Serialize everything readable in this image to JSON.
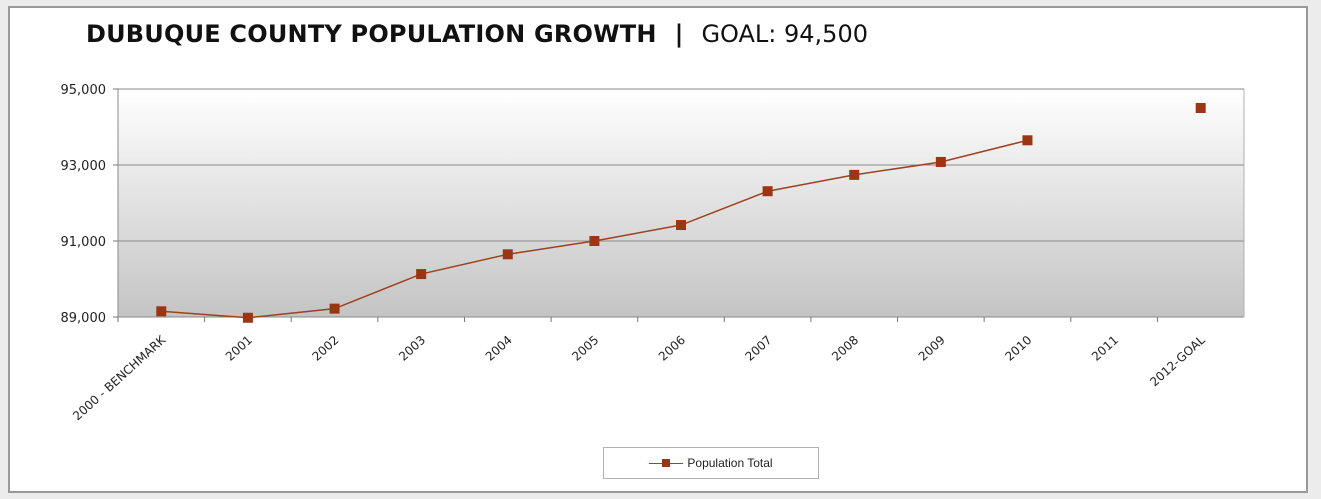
{
  "title": {
    "main": "DUBUQUE COUNTY POPULATION GROWTH",
    "separator": "|",
    "goal": "GOAL: 94,500"
  },
  "legend": {
    "label": "Population Total"
  },
  "colors": {
    "series": "#a0401f",
    "marker": "#9b3513",
    "gridline": "#8a8a8a",
    "plot_gradient_top": "#ffffff",
    "plot_gradient_bottom": "#c4c4c4"
  },
  "chart_data": {
    "type": "line",
    "title": "DUBUQUE COUNTY POPULATION GROWTH | GOAL: 94,500",
    "categories": [
      "2000 - BENCHMARK",
      "2001",
      "2002",
      "2003",
      "2004",
      "2005",
      "2006",
      "2007",
      "2008",
      "2009",
      "2010",
      "2011",
      "2012-GOAL"
    ],
    "series": [
      {
        "name": "Population Total",
        "values": [
          89150,
          88980,
          89220,
          90130,
          90650,
          91000,
          91420,
          92310,
          92740,
          93080,
          93650,
          null,
          94500
        ]
      }
    ],
    "ylim": [
      89000,
      95000
    ],
    "yticks": [
      "89,000",
      "91,000",
      "93,000",
      "95,000"
    ],
    "ytick_values": [
      89000,
      91000,
      93000,
      95000
    ],
    "xlabel": "",
    "ylabel": "",
    "grid": true,
    "legend_position": "bottom"
  }
}
